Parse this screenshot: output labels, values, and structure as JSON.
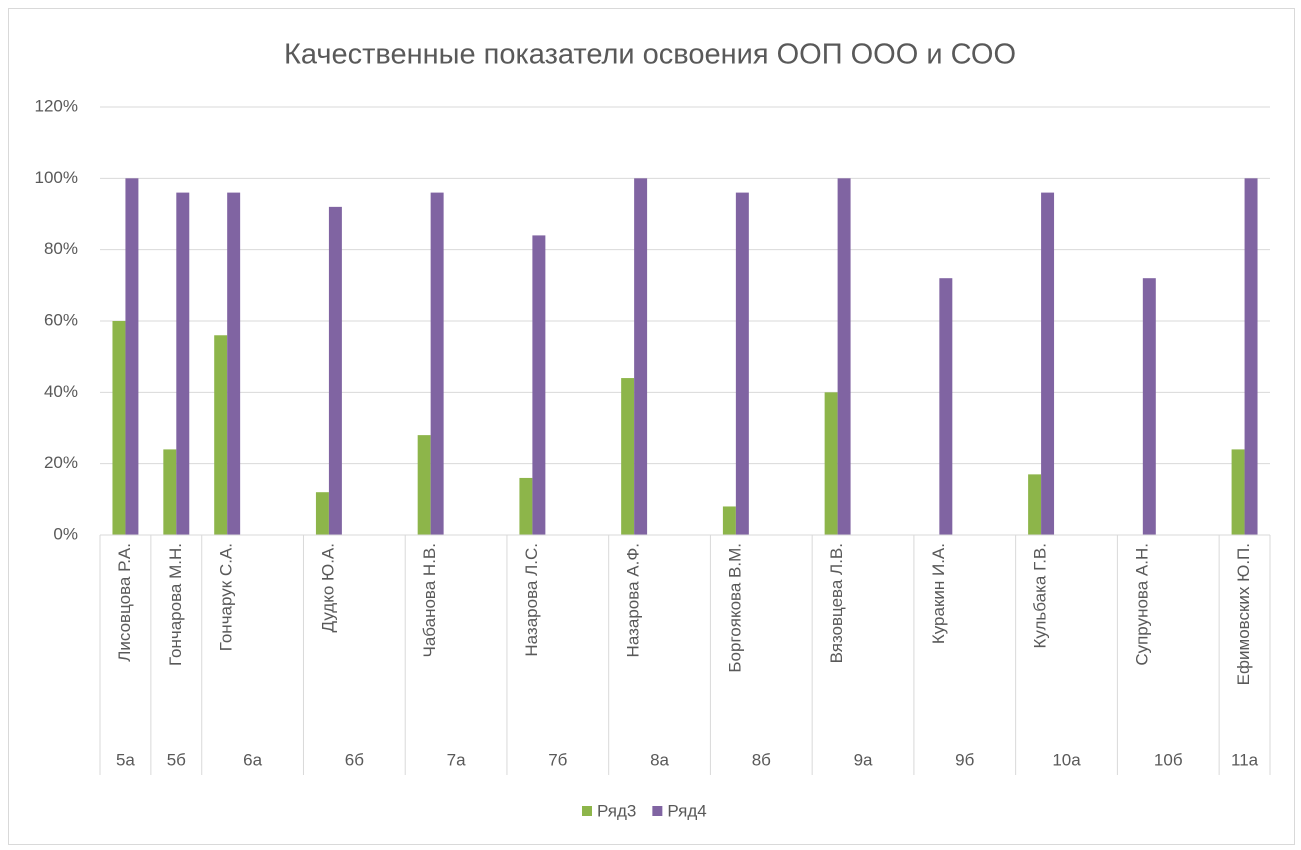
{
  "chart_data": {
    "type": "bar",
    "title": "Качественные  показатели освоения ООП ООО и СОО",
    "categories": [
      "Лисовцова Р.А.",
      "Гончарова М.Н.",
      "Гончарук С.А.",
      null,
      "Дудко Ю.А.",
      null,
      "Чабанова Н.В.",
      null,
      "Назарова Л.С.",
      null,
      "Назарова А.Ф.",
      null,
      "Боргоякова В.М.",
      null,
      "Вязовцева Л.В.",
      null,
      "Куракин И.А.",
      null,
      "Кульбака Г.В.",
      null,
      "Супрунова А.Н.",
      null,
      "Ефимовских Ю.П."
    ],
    "groups": [
      {
        "label": "5а",
        "count": 1
      },
      {
        "label": "5б",
        "count": 1
      },
      {
        "label": "6а",
        "count": 2
      },
      {
        "label": "6б",
        "count": 2
      },
      {
        "label": "7а",
        "count": 2
      },
      {
        "label": "7б",
        "count": 2
      },
      {
        "label": "8а",
        "count": 2
      },
      {
        "label": "8б",
        "count": 2
      },
      {
        "label": "9а",
        "count": 2
      },
      {
        "label": "9б",
        "count": 2
      },
      {
        "label": "10а",
        "count": 2
      },
      {
        "label": "10б",
        "count": 2
      },
      {
        "label": "11а",
        "count": 1
      }
    ],
    "series": [
      {
        "name": "Ряд3",
        "color": "#8db54a",
        "values": [
          60,
          24,
          56,
          null,
          12,
          null,
          28,
          null,
          16,
          null,
          44,
          null,
          8,
          null,
          40,
          null,
          null,
          null,
          17,
          null,
          null,
          null,
          24
        ]
      },
      {
        "name": "Ряд4",
        "color": "#8064a2",
        "values": [
          100,
          96,
          96,
          null,
          92,
          null,
          96,
          null,
          84,
          null,
          100,
          null,
          96,
          null,
          100,
          null,
          72,
          null,
          96,
          null,
          72,
          null,
          100
        ]
      }
    ],
    "ylim": [
      0,
      120
    ],
    "yticks": [
      {
        "value": 0,
        "label": "0%"
      },
      {
        "value": 20,
        "label": "20%"
      },
      {
        "value": 40,
        "label": "40%"
      },
      {
        "value": 60,
        "label": "60%"
      },
      {
        "value": 80,
        "label": "80%"
      },
      {
        "value": 100,
        "label": "100%"
      },
      {
        "value": 120,
        "label": "120%"
      }
    ],
    "grid": true,
    "legend": "bottom"
  }
}
